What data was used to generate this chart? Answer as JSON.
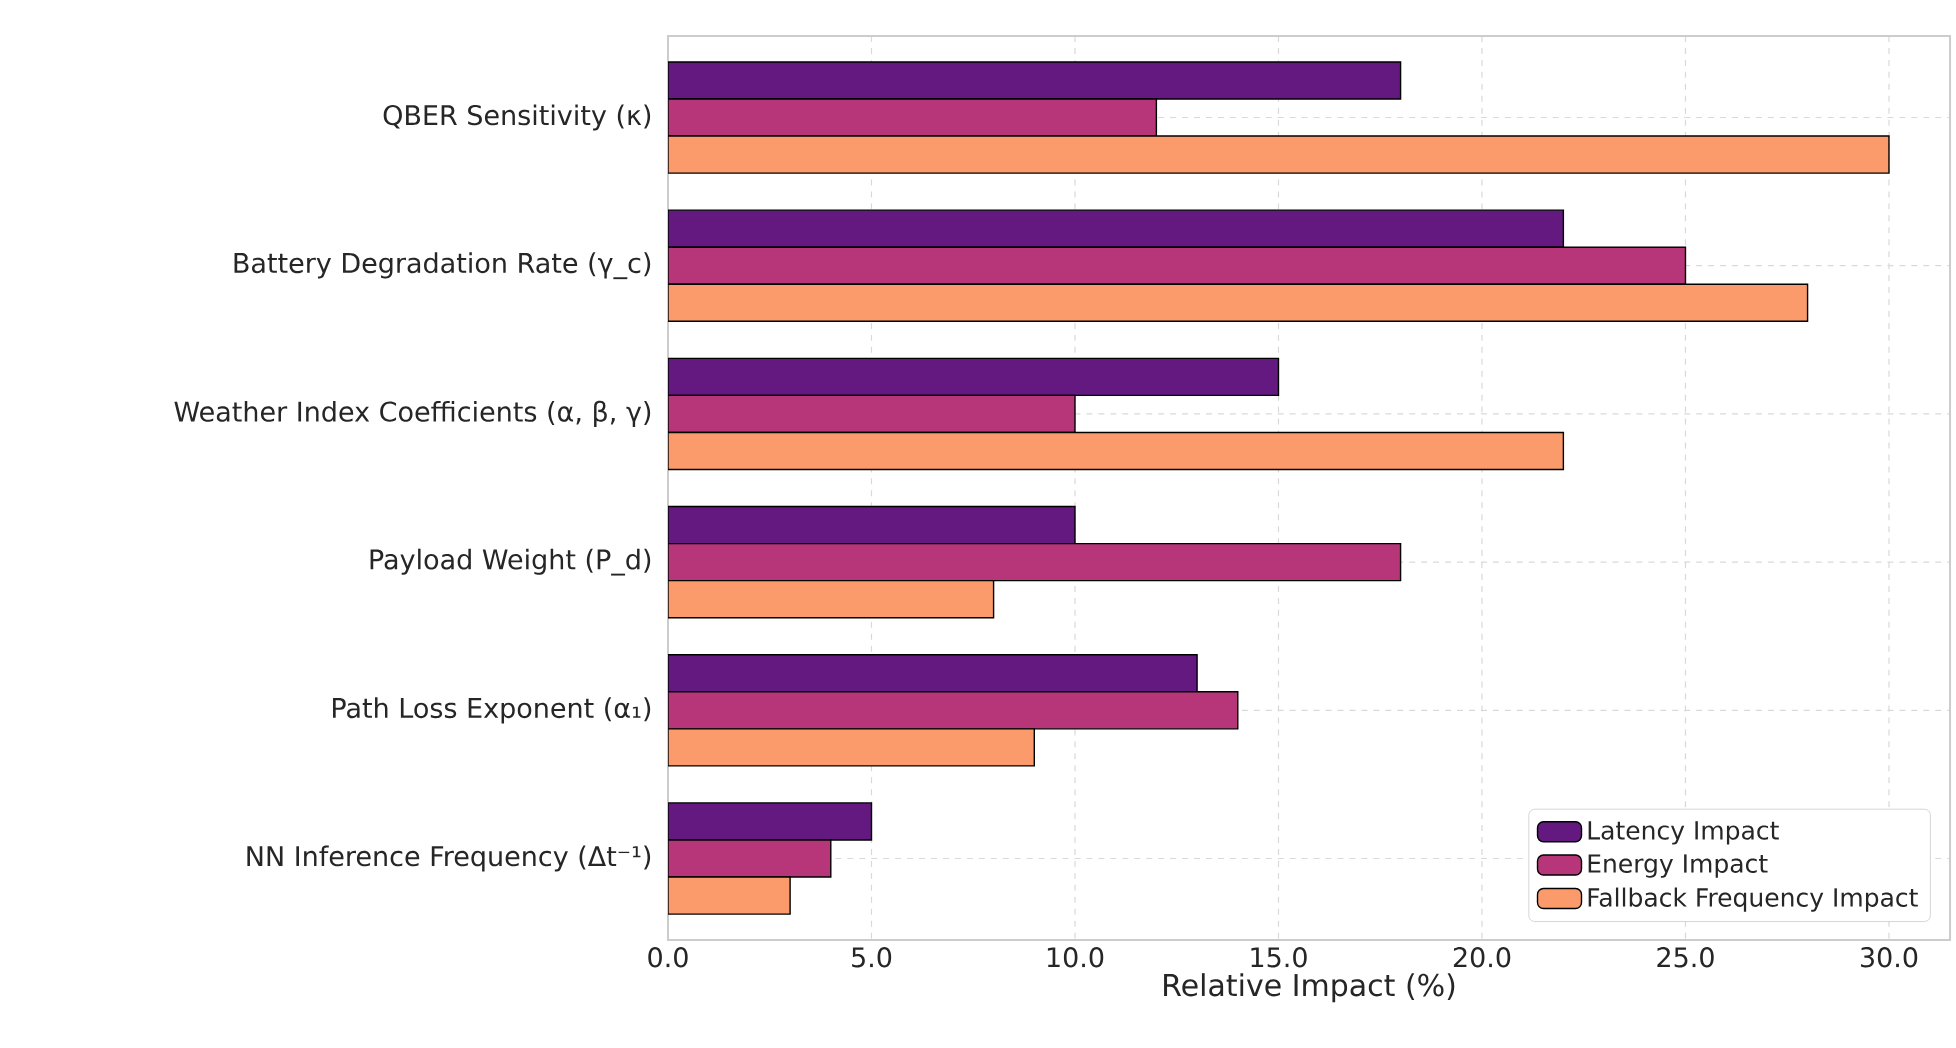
{
  "chart_data": {
    "type": "bar",
    "orientation": "horizontal",
    "xlabel": "Relative Impact (%)",
    "categories": [
      "QBER Sensitivity (κ)",
      "Battery Degradation Rate (γ_c)",
      "Weather Index Coefficients (α, β, γ)",
      "Payload Weight (P_d)",
      "Path Loss Exponent (α₁)",
      "NN Inference Frequency (Δt⁻¹)"
    ],
    "series": [
      {
        "name": "Latency Impact",
        "color": "#63197f",
        "values": [
          18,
          22,
          15,
          10,
          13,
          5
        ]
      },
      {
        "name": "Energy Impact",
        "color": "#b63679",
        "values": [
          12,
          25,
          10,
          18,
          14,
          4
        ]
      },
      {
        "name": "Fallback Frequency Impact",
        "color": "#fb9b6c",
        "values": [
          30,
          28,
          22,
          8,
          9,
          3
        ]
      }
    ],
    "xlim": [
      0,
      31.5
    ],
    "xticks": [
      {
        "value": 0,
        "label": "0.0"
      },
      {
        "value": 5,
        "label": "5.0"
      },
      {
        "value": 10,
        "label": "10.0"
      },
      {
        "value": 15,
        "label": "15.0"
      },
      {
        "value": 20,
        "label": "20.0"
      },
      {
        "value": 25,
        "label": "25.0"
      },
      {
        "value": 30,
        "label": "30.0"
      }
    ],
    "grid": true,
    "legend": "bottom right"
  }
}
